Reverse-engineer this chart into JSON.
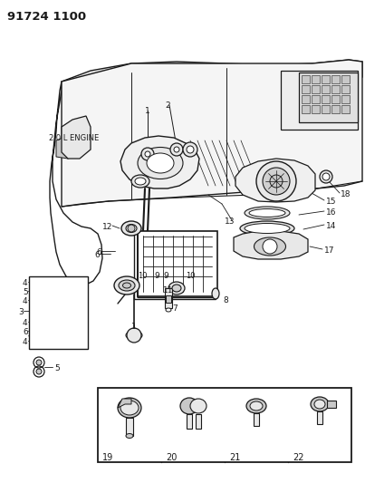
{
  "title": "91724 1100",
  "bg_color": "#ffffff",
  "line_color": "#1a1a1a",
  "gray_fill": "#c8c8c8",
  "mid_gray": "#999999",
  "dark_gray": "#555555",
  "light_gray": "#e8e8e8",
  "diagram_label": "2.0 L ENGINE",
  "bottom_box_labels": [
    "19",
    "20",
    "21",
    "22"
  ],
  "figsize": [
    4.03,
    5.33
  ],
  "dpi": 100
}
